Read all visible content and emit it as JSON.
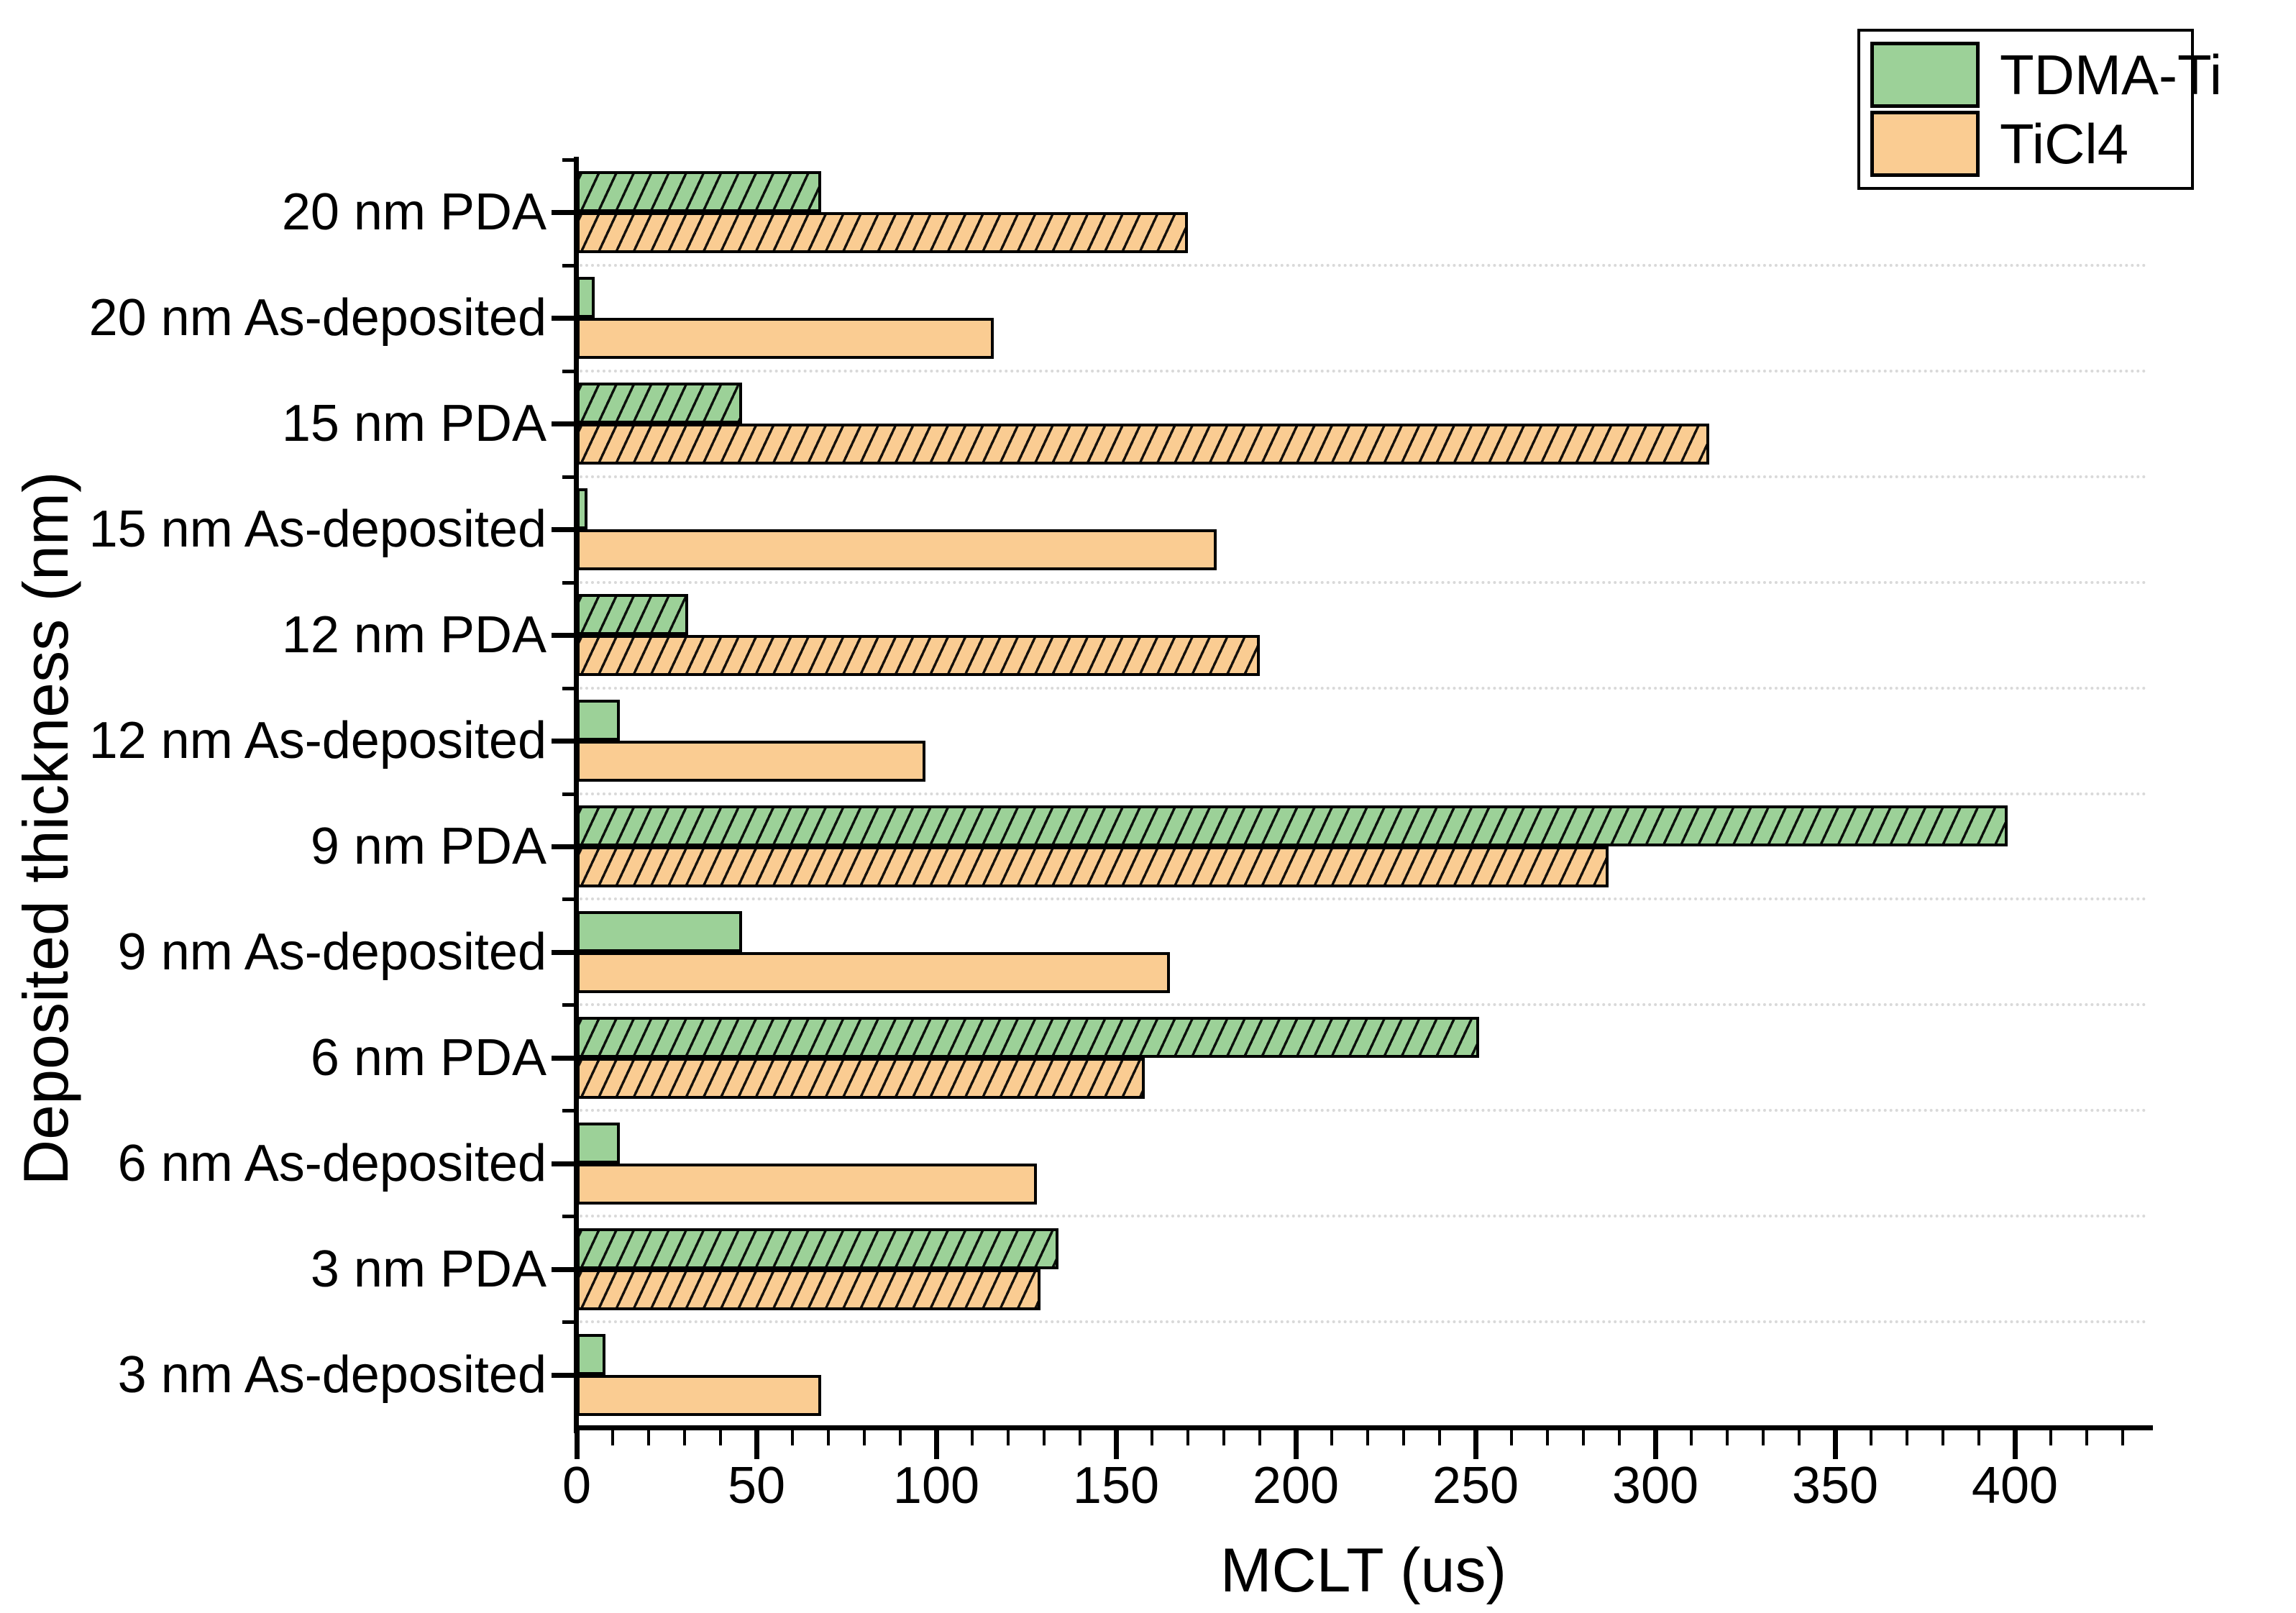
{
  "figure": {
    "background": "#ffffff",
    "text_color": "#000000"
  },
  "legend": {
    "position": "top-right",
    "items": [
      {
        "label": "TDMA-Ti",
        "color": "#9CD198"
      },
      {
        "label": "TiCl4",
        "color": "#FACC92"
      }
    ]
  },
  "chart_data": {
    "type": "bar",
    "orientation": "horizontal",
    "title": "",
    "xlabel": "MCLT (us)",
    "ylabel": "Deposited thickness (nm)",
    "xlim": [
      0,
      437
    ],
    "x_major_ticks": [
      0,
      50,
      100,
      150,
      200,
      250,
      300,
      350,
      400
    ],
    "x_minor_tick_step": 10,
    "grid": "light dotted horizontal lines at category boundaries",
    "legend_position": "top-right",
    "categories": [
      "20 nm PDA",
      "20 nm As-deposited",
      "15 nm PDA",
      "15 nm As-deposited",
      "12 nm PDA",
      "12 nm As-deposited",
      "9 nm PDA",
      "9 nm As-deposited",
      "6 nm PDA",
      "6 nm As-deposited",
      "3 nm PDA",
      "3 nm As-deposited"
    ],
    "hatched_rows": [
      true,
      false,
      true,
      false,
      true,
      false,
      true,
      false,
      true,
      false,
      true,
      false
    ],
    "series": [
      {
        "name": "TDMA-Ti",
        "color": "#9CD198",
        "values": [
          68,
          5,
          46,
          3,
          31,
          12,
          398,
          46,
          251,
          12,
          134,
          8
        ]
      },
      {
        "name": "TiCl4",
        "color": "#FACC92",
        "values": [
          170,
          116,
          315,
          178,
          190,
          97,
          287,
          165,
          158,
          128,
          129,
          68
        ]
      }
    ],
    "style": {
      "bar_border_color": "#000000",
      "grid_color": "#d9d9d9",
      "hatch": "diagonal '/' black lines on PDA rows; As-deposited rows solid"
    }
  }
}
